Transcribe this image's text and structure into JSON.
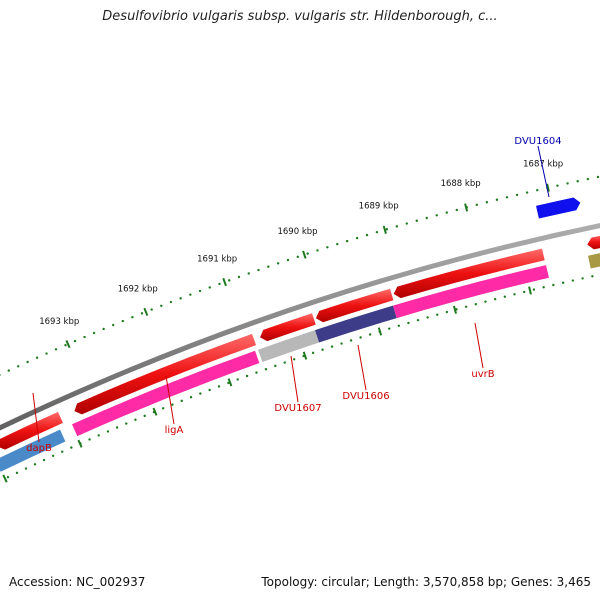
{
  "title": "Desulfovibrio vulgaris subsp. vulgaris str. Hildenborough, c...",
  "footer": {
    "accession": "Accession: NC_002937",
    "summary": "Topology: circular; Length: 3,570,858 bp; Genes: 3,465"
  },
  "colors": {
    "backbone": "#8a8a8a",
    "forward_gene": "#ee1111",
    "tick": "#1f7a1f",
    "gene_label": "#cc0000",
    "other_label": "#0000aa"
  },
  "scale": {
    "ticks": [
      {
        "label": "1693 kbp"
      },
      {
        "label": "1692 kbp"
      },
      {
        "label": "1691 kbp"
      },
      {
        "label": "1690 kbp"
      },
      {
        "label": "1689 kbp"
      },
      {
        "label": "1688 kbp"
      },
      {
        "label": "1687 kbp"
      }
    ]
  },
  "genes": [
    {
      "label": "dapB",
      "color": "#4a8ac8"
    },
    {
      "label": "ligA",
      "color": "#ff2aa5"
    },
    {
      "label": "DVU1607",
      "color": "#b8b8b8"
    },
    {
      "label": "DVU1606",
      "color": "#3c3c88"
    },
    {
      "label": "uvrB",
      "color": "#ff2aa5"
    },
    {
      "label": "DVU1604",
      "color": "#1010ee"
    }
  ]
}
